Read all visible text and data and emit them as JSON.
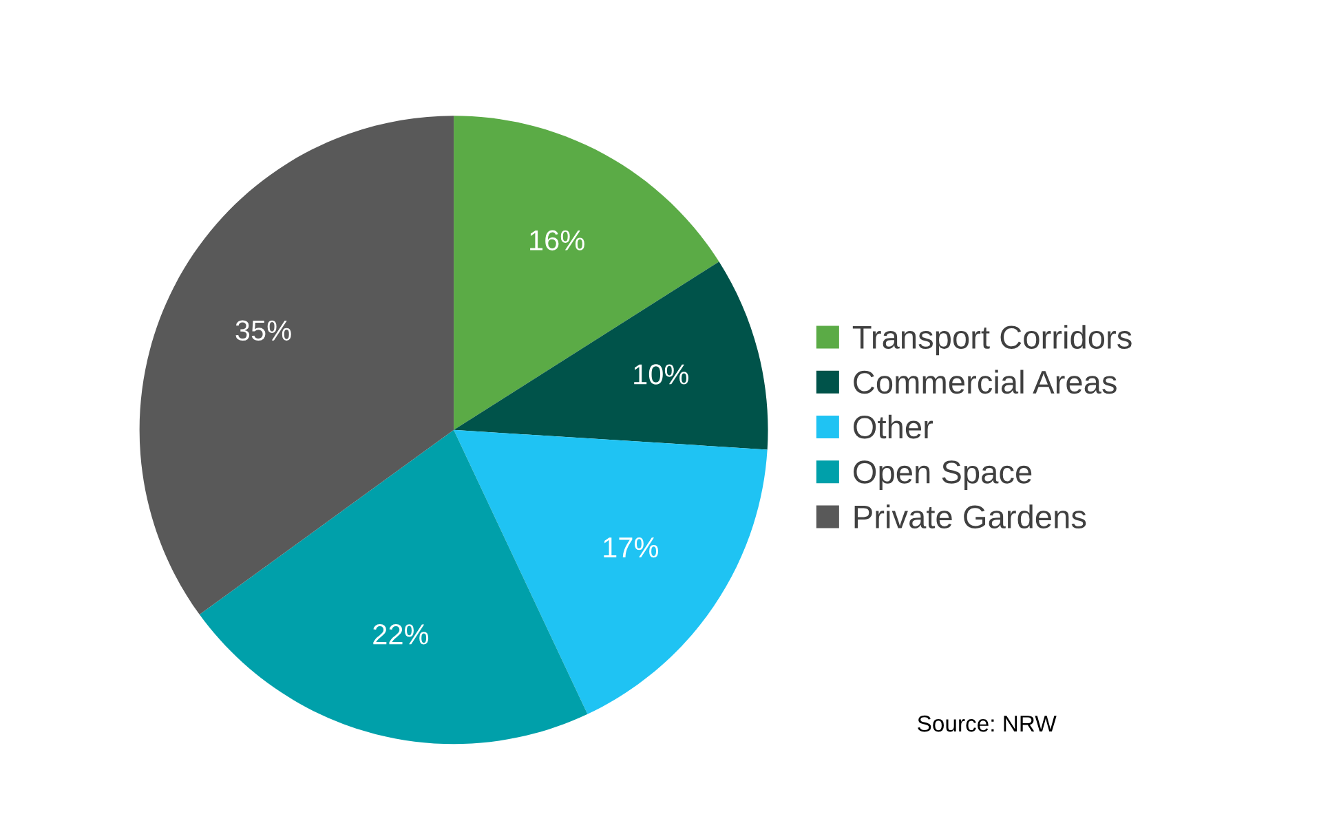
{
  "chart_data": {
    "type": "pie",
    "categories": [
      "Transport Corridors",
      "Commercial Areas",
      "Other",
      "Open Space",
      "Private Gardens"
    ],
    "values": [
      16,
      10,
      17,
      22,
      35
    ],
    "colors": [
      "#5bab46",
      "#00534a",
      "#1fc3f3",
      "#00a0aa",
      "#595959"
    ],
    "value_labels": [
      "16%",
      "10%",
      "17%",
      "22%",
      "35%"
    ],
    "legend": "right",
    "annotations": [
      "Source: NRW"
    ]
  }
}
